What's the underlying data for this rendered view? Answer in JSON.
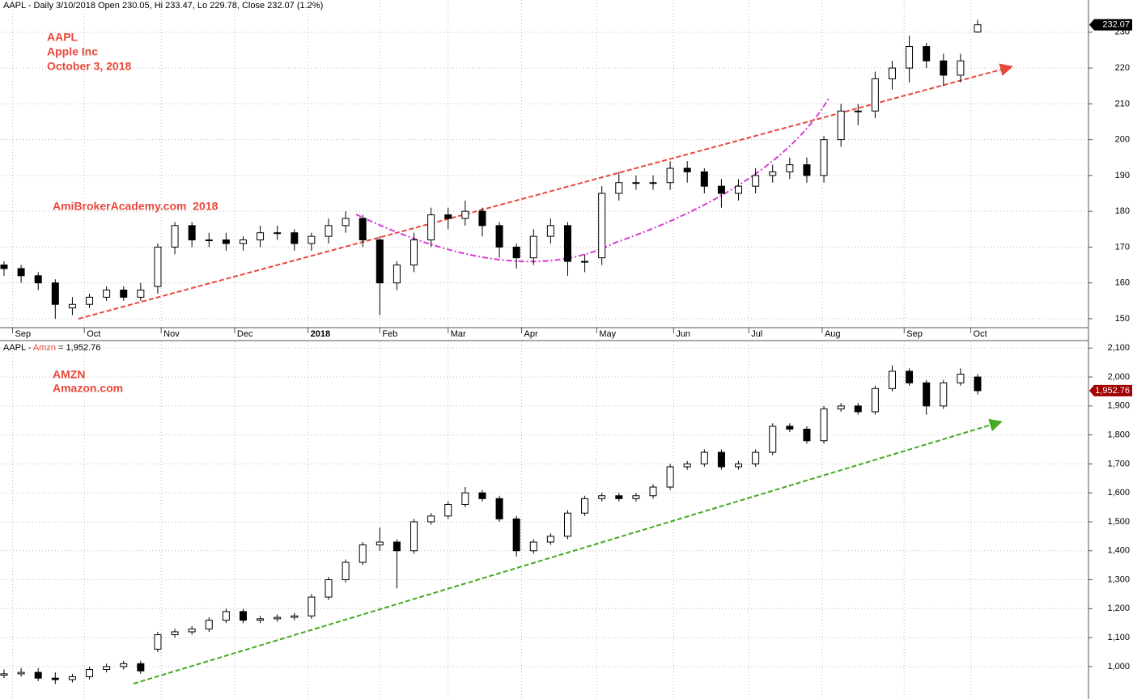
{
  "charts": [
    {
      "chart_data": {
        "type": "candlestick",
        "header": "AAPL - Daily 3/10/2018 Open 230.05, Hi 233.47, Lo 229.78, Close 232.07 (1.2%)",
        "annotations": [
          "AAPL",
          "Apple Inc",
          "October 3, 2018",
          "AmiBrokerAcademy.com  2018"
        ],
        "last_label": "232.07",
        "last_color": "#000000",
        "xlim": [
          0,
          57
        ],
        "xticks": [
          {
            "value": 0.5,
            "label": "Sep"
          },
          {
            "value": 4.7,
            "label": "Oct"
          },
          {
            "value": 9.2,
            "label": "Nov"
          },
          {
            "value": 13.5,
            "label": "Dec"
          },
          {
            "value": 17.8,
            "label": "2018"
          },
          {
            "value": 22.0,
            "label": "Feb"
          },
          {
            "value": 26.0,
            "label": "Mar"
          },
          {
            "value": 30.3,
            "label": "Apr"
          },
          {
            "value": 34.7,
            "label": "May"
          },
          {
            "value": 39.2,
            "label": "Jun"
          },
          {
            "value": 43.6,
            "label": "Jul"
          },
          {
            "value": 47.9,
            "label": "Aug"
          },
          {
            "value": 52.7,
            "label": "Sep"
          },
          {
            "value": 56.6,
            "label": "Oct"
          }
        ],
        "ylim": [
          147.5,
          239
        ],
        "yticks": [
          150,
          160,
          170,
          180,
          190,
          200,
          210,
          220,
          230
        ],
        "grid": true,
        "open": [
          165,
          164,
          162,
          160,
          153,
          154,
          156,
          158,
          156,
          159,
          170,
          176,
          172,
          172,
          171,
          172,
          174,
          174,
          171,
          173,
          176,
          178,
          172,
          160,
          165,
          172,
          179,
          178,
          180,
          176,
          170,
          167,
          173,
          176,
          166,
          167,
          185,
          188,
          188,
          188,
          192,
          191,
          187,
          185,
          187,
          190,
          191,
          193,
          190,
          200,
          208,
          208,
          217,
          220,
          226,
          222,
          218,
          230.05
        ],
        "high": [
          166,
          165,
          163,
          161,
          156,
          157,
          159,
          159,
          160,
          171,
          177,
          177,
          174,
          174,
          173,
          176,
          176,
          175,
          174,
          178,
          180,
          179,
          173,
          166,
          174,
          181,
          181,
          183,
          181,
          177,
          171,
          175,
          178,
          177,
          168,
          187,
          191,
          190,
          190,
          194,
          194,
          192,
          189,
          189,
          192,
          193,
          195,
          195,
          201,
          210,
          210,
          219,
          222,
          229,
          227,
          224,
          224,
          233.47
        ],
        "low": [
          162,
          160,
          158,
          150,
          151,
          153,
          155,
          155,
          155,
          157,
          168,
          170,
          170,
          169,
          169,
          170,
          172,
          169,
          169,
          171,
          174,
          170,
          151,
          158,
          163,
          170,
          175,
          176,
          173,
          167,
          164,
          165,
          171,
          162,
          163,
          165,
          183,
          186,
          186,
          186,
          188,
          185,
          181,
          183,
          185,
          188,
          189,
          188,
          188,
          198,
          204,
          206,
          214,
          216,
          220,
          215,
          216,
          229.78
        ],
        "close": [
          164,
          162,
          160,
          154,
          154,
          156,
          158,
          156,
          158,
          170,
          176,
          172,
          172,
          171,
          172,
          174,
          174,
          171,
          173,
          176,
          178,
          172,
          160,
          165,
          172,
          179,
          178,
          180,
          176,
          170,
          167,
          173,
          176,
          166,
          166,
          185,
          188,
          188,
          188,
          192,
          191,
          187,
          185,
          187,
          190,
          191,
          193,
          190,
          200,
          208,
          208,
          217,
          220,
          226,
          222,
          218,
          222,
          232.07
        ]
      }
    },
    {
      "chart_data": {
        "type": "candlestick",
        "header_parts": [
          "AAPL - ",
          "Amzn",
          " = 1,952.76"
        ],
        "annotations": [
          "AMZN",
          "Amazon.com"
        ],
        "last_label": "1,952.76",
        "last_color": "#a00000",
        "xlim": [
          0,
          57
        ],
        "ylim": [
          888,
          2123
        ],
        "yticks": [
          {
            "value": 1000,
            "label": "1,000"
          },
          {
            "value": 1100,
            "label": "1,100"
          },
          {
            "value": 1200,
            "label": "1,200"
          },
          {
            "value": 1300,
            "label": "1,300"
          },
          {
            "value": 1400,
            "label": "1,400"
          },
          {
            "value": 1500,
            "label": "1,500"
          },
          {
            "value": 1600,
            "label": "1,600"
          },
          {
            "value": 1700,
            "label": "1,700"
          },
          {
            "value": 1800,
            "label": "1,800"
          },
          {
            "value": 1900,
            "label": "1,900"
          },
          {
            "value": 2000,
            "label": "2,000"
          },
          {
            "value": 2100,
            "label": "2,100"
          }
        ],
        "grid": true,
        "open": [
          970,
          975,
          980,
          960,
          955,
          965,
          990,
          1000,
          1010,
          1060,
          1110,
          1120,
          1130,
          1160,
          1190,
          1160,
          1165,
          1170,
          1175,
          1240,
          1300,
          1360,
          1420,
          1430,
          1400,
          1500,
          1520,
          1560,
          1600,
          1580,
          1510,
          1400,
          1430,
          1450,
          1530,
          1580,
          1590,
          1580,
          1590,
          1620,
          1690,
          1700,
          1740,
          1690,
          1700,
          1740,
          1830,
          1820,
          1780,
          1890,
          1900,
          1880,
          1960,
          2020,
          1980,
          1900,
          1980,
          2000
        ],
        "high": [
          990,
          995,
          995,
          980,
          975,
          1000,
          1010,
          1020,
          1020,
          1120,
          1130,
          1140,
          1170,
          1200,
          1200,
          1175,
          1180,
          1185,
          1250,
          1310,
          1370,
          1430,
          1480,
          1440,
          1510,
          1530,
          1570,
          1620,
          1610,
          1590,
          1520,
          1440,
          1460,
          1540,
          1590,
          1600,
          1600,
          1600,
          1630,
          1700,
          1710,
          1750,
          1750,
          1710,
          1750,
          1840,
          1840,
          1830,
          1900,
          1910,
          1910,
          1970,
          2040,
          2030,
          1990,
          1990,
          2030,
          2010
        ],
        "low": [
          960,
          965,
          950,
          940,
          945,
          955,
          980,
          990,
          975,
          1050,
          1100,
          1110,
          1120,
          1150,
          1150,
          1150,
          1155,
          1160,
          1165,
          1230,
          1290,
          1350,
          1400,
          1270,
          1390,
          1490,
          1510,
          1550,
          1570,
          1500,
          1380,
          1390,
          1420,
          1440,
          1520,
          1570,
          1570,
          1570,
          1580,
          1610,
          1680,
          1690,
          1680,
          1680,
          1690,
          1730,
          1810,
          1770,
          1770,
          1880,
          1870,
          1870,
          1950,
          1970,
          1870,
          1890,
          1970,
          1940
        ],
        "close": [
          975,
          980,
          960,
          955,
          965,
          990,
          1000,
          1010,
          985,
          1110,
          1120,
          1130,
          1160,
          1190,
          1160,
          1165,
          1170,
          1175,
          1240,
          1300,
          1360,
          1420,
          1430,
          1400,
          1500,
          1520,
          1560,
          1600,
          1580,
          1510,
          1400,
          1430,
          1450,
          1530,
          1580,
          1590,
          1580,
          1590,
          1620,
          1690,
          1700,
          1740,
          1690,
          1700,
          1740,
          1830,
          1820,
          1780,
          1890,
          1900,
          1880,
          1960,
          2020,
          1980,
          1900,
          1980,
          2010,
          1952.76
        ]
      }
    }
  ]
}
